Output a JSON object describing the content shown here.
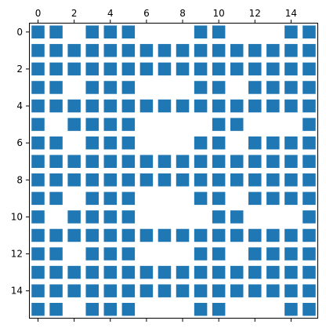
{
  "chart_data": {
    "type": "heatmap",
    "title": "",
    "xlabel": "",
    "ylabel": "",
    "x_axis_position": "top",
    "xlim": [
      -0.5,
      15.5
    ],
    "ylim": [
      15.5,
      -0.5
    ],
    "x_ticks": [
      0,
      2,
      4,
      6,
      8,
      10,
      12,
      14
    ],
    "y_ticks": [
      0,
      2,
      4,
      6,
      8,
      10,
      12,
      14
    ],
    "x_tick_labels": [
      "0",
      "2",
      "4",
      "6",
      "8",
      "10",
      "12",
      "14"
    ],
    "y_tick_labels": [
      "0",
      "2",
      "4",
      "6",
      "8",
      "10",
      "12",
      "14"
    ],
    "grid": false,
    "marker_color": "#1f77b4",
    "matrix": [
      [
        1,
        1,
        0,
        1,
        1,
        1,
        0,
        0,
        0,
        1,
        1,
        0,
        0,
        0,
        1,
        1
      ],
      [
        1,
        1,
        1,
        1,
        1,
        1,
        1,
        1,
        1,
        1,
        1,
        1,
        1,
        1,
        1,
        1
      ],
      [
        1,
        1,
        1,
        1,
        1,
        1,
        1,
        1,
        1,
        1,
        1,
        1,
        1,
        1,
        1,
        1
      ],
      [
        1,
        1,
        0,
        1,
        1,
        1,
        0,
        0,
        0,
        1,
        1,
        0,
        1,
        1,
        1,
        1
      ],
      [
        1,
        1,
        1,
        1,
        1,
        1,
        1,
        1,
        1,
        1,
        1,
        1,
        1,
        1,
        1,
        1
      ],
      [
        1,
        0,
        1,
        1,
        1,
        1,
        0,
        0,
        0,
        0,
        1,
        1,
        0,
        0,
        0,
        1
      ],
      [
        1,
        1,
        0,
        1,
        1,
        1,
        0,
        0,
        0,
        1,
        1,
        0,
        1,
        1,
        1,
        1
      ],
      [
        1,
        1,
        1,
        1,
        1,
        1,
        1,
        1,
        1,
        1,
        1,
        1,
        1,
        1,
        1,
        1
      ],
      [
        1,
        1,
        1,
        1,
        1,
        1,
        1,
        1,
        1,
        1,
        1,
        1,
        1,
        1,
        1,
        1
      ],
      [
        1,
        1,
        0,
        1,
        1,
        1,
        0,
        0,
        0,
        1,
        1,
        0,
        1,
        1,
        1,
        1
      ],
      [
        1,
        0,
        1,
        1,
        1,
        1,
        0,
        0,
        0,
        0,
        1,
        1,
        0,
        0,
        0,
        1
      ],
      [
        1,
        1,
        1,
        1,
        1,
        1,
        1,
        1,
        1,
        1,
        1,
        1,
        1,
        1,
        1,
        1
      ],
      [
        1,
        1,
        0,
        1,
        1,
        1,
        0,
        0,
        0,
        1,
        1,
        0,
        1,
        1,
        1,
        1
      ],
      [
        1,
        1,
        1,
        1,
        1,
        1,
        1,
        1,
        1,
        1,
        1,
        1,
        1,
        1,
        1,
        1
      ],
      [
        1,
        1,
        1,
        1,
        1,
        1,
        1,
        1,
        1,
        1,
        1,
        1,
        1,
        1,
        1,
        1
      ],
      [
        1,
        1,
        0,
        1,
        1,
        1,
        0,
        0,
        0,
        1,
        1,
        0,
        0,
        0,
        1,
        1
      ]
    ]
  }
}
